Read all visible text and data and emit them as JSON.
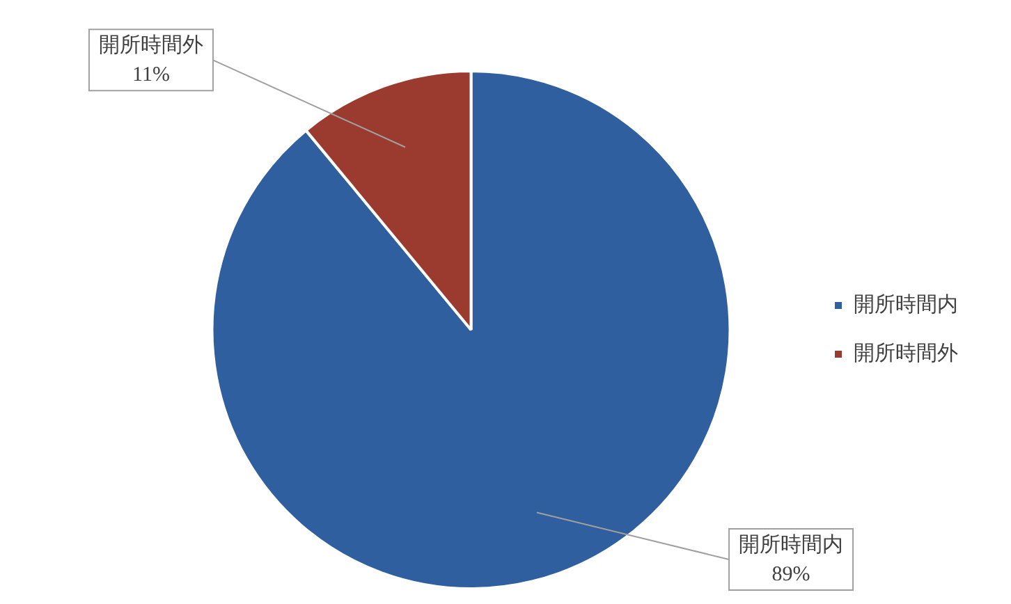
{
  "chart_data": {
    "type": "pie",
    "categories": [
      "開所時間内",
      "開所時間外"
    ],
    "values": [
      89,
      11
    ],
    "colors": [
      "#2f5f9e",
      "#9b3b2f"
    ],
    "value_labels": [
      "89%",
      "11%"
    ],
    "legend": "right"
  }
}
